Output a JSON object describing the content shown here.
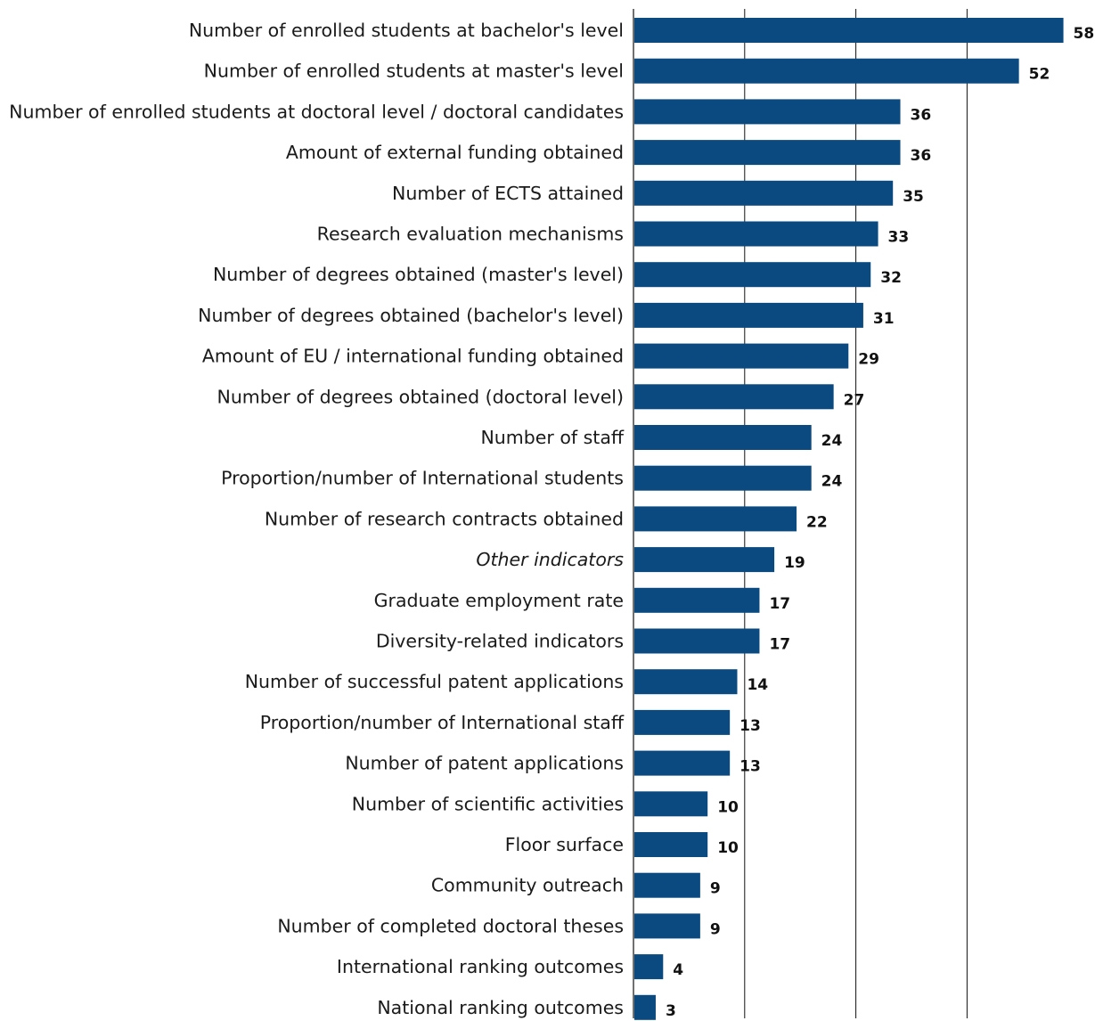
{
  "chart_data": {
    "type": "bar",
    "orientation": "horizontal",
    "title": "",
    "xlabel": "",
    "ylabel": "",
    "categories": [
      "Number of enrolled students at bachelor's level",
      "Number of enrolled students at master's level",
      "Number of enrolled students at doctoral level / doctoral candidates",
      "Amount of external funding obtained",
      "Number of ECTS attained",
      "Research evaluation mechanisms",
      "Number of degrees obtained (master's level)",
      "Number of degrees obtained (bachelor's level)",
      "Amount of EU / international funding obtained",
      "Number of degrees obtained (doctoral level)",
      "Number of staff",
      "Proportion/number of International students",
      "Number of research contracts obtained",
      "Other indicators",
      "Graduate employment rate",
      "Diversity-related indicators",
      "Number of successful patent applications",
      "Proportion/number of International staff",
      "Number of patent applications",
      "Number of scientific activities",
      "Floor surface",
      "Community outreach",
      "Number of completed doctoral theses",
      "International ranking outcomes",
      "National ranking outcomes"
    ],
    "italic_categories": [
      "Other indicators"
    ],
    "values": [
      58,
      52,
      36,
      36,
      35,
      33,
      32,
      31,
      29,
      27,
      24,
      24,
      22,
      19,
      17,
      17,
      14,
      13,
      13,
      10,
      10,
      9,
      9,
      4,
      3
    ],
    "xlim": [
      0,
      60
    ],
    "gridlines_at": [
      15,
      30,
      45
    ],
    "grid": true,
    "x_tick_labels_shown": false,
    "data_labels": true,
    "legend": "none",
    "colors": {
      "bar": "#0a4a80",
      "text": "#1a1a1a",
      "grid": "#111111"
    }
  }
}
